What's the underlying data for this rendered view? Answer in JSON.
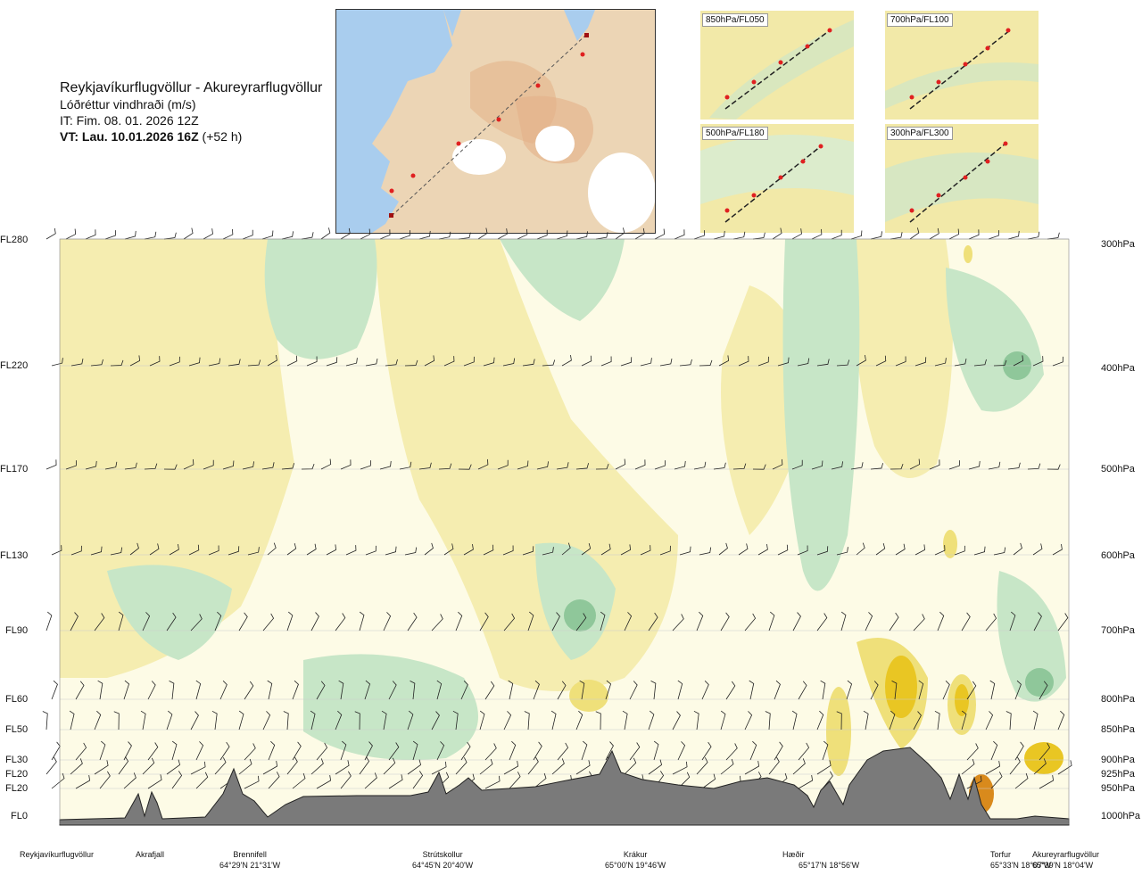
{
  "title": {
    "route": "Reykjavíkurflugvöllur - Akureyrarflugvöllur",
    "parameter": "Lóðréttur vindhraði (m/s)",
    "issue_time": "IT: Fim. 08. 01. 2026 12Z",
    "valid_time": "VT: Lau. 10.01.2026 16Z",
    "lead": "(+52 h)"
  },
  "map": {
    "route_points": [
      "Reykjavíkurflugvöllur",
      "Akrafjall",
      "Brennifell",
      "Strútskollur",
      "Krákur",
      "Hæðir",
      "Torfur",
      "Akureyrarflugvöllur"
    ]
  },
  "thumbnails": [
    {
      "label": "850hPa/FL050"
    },
    {
      "label": "700hPa/FL100"
    },
    {
      "label": "500hPa/FL180"
    },
    {
      "label": "300hPa/FL300"
    }
  ],
  "chart_data": {
    "type": "heatmap",
    "title": "Lóðréttur vindhraði (m/s)",
    "levels_left": [
      "FL280",
      "FL220",
      "FL170",
      "FL130",
      "FL90",
      "FL60",
      "FL50",
      "FL30",
      "FL20",
      "FL20",
      "FL0"
    ],
    "levels_right": [
      "300hPa",
      "400hPa",
      "500hPa",
      "600hPa",
      "700hPa",
      "800hPa",
      "850hPa",
      "900hPa",
      "925hPa",
      "950hPa",
      "1000hPa"
    ],
    "pressure_hpa": [
      300,
      400,
      500,
      600,
      700,
      800,
      850,
      900,
      925,
      950,
      1000
    ],
    "stations": [
      {
        "name": "Reykjavíkurflugvöllur",
        "coord": ""
      },
      {
        "name": "Akrafjall",
        "coord": ""
      },
      {
        "name": "Brennifell",
        "coord": "64°29'N 21°31'W"
      },
      {
        "name": "Strútskollur",
        "coord": "64°45'N 20°40'W"
      },
      {
        "name": "Krákur",
        "coord": "65°00'N 19°46'W"
      },
      {
        "name": "Hæðir",
        "coord": "65°17'N 18°56'W"
      },
      {
        "name": "Torfur",
        "coord": "65°33'N 18°07'W"
      },
      {
        "name": "Akureyrarflugvöllur",
        "coord": "65°39'N 18°04'W"
      }
    ],
    "colors": {
      "strong_down": "#8fc79a",
      "down": "#c7e6c7",
      "weak_down": "#e6f4e2",
      "neutral": "#fdfbe6",
      "weak_up": "#f5edb0",
      "up": "#efe07a",
      "strong_up": "#e9c623",
      "very_strong_up": "#d98a1c",
      "terrain": "#7a7a7a"
    },
    "grid": true
  }
}
